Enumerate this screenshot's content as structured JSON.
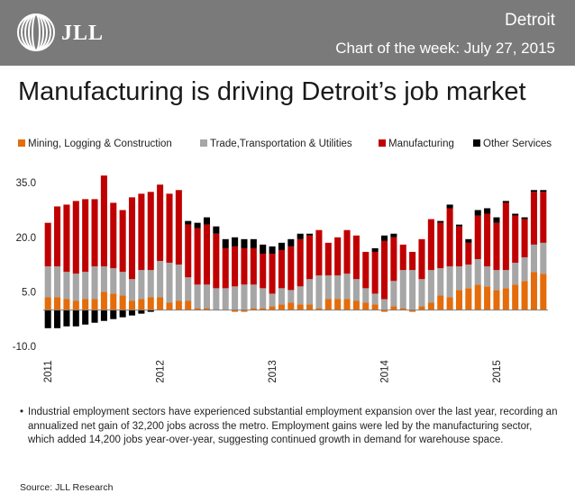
{
  "header": {
    "logo_text": "JLL",
    "city": "Detroit",
    "subtitle": "Chart of the week: July 27, 2015"
  },
  "headline": "Manufacturing is driving Detroit’s job market",
  "bullet": "Industrial employment sectors have experienced substantial employment expansion over the last year, recording an annualized net gain of 32,200 jobs across the metro. Employment gains were led by the manufacturing sector, which added 14,200 jobs year-over-year, suggesting continued growth in demand for warehouse space.",
  "source": "Source: JLL Research",
  "chart_data": {
    "type": "bar",
    "stacked": true,
    "title": "",
    "xlabel": "",
    "ylabel": "",
    "ylim": [
      -10,
      40
    ],
    "yticks": [
      "35.0",
      "20.0",
      "5.0",
      "-10.0"
    ],
    "ytick_values": [
      35,
      20,
      5,
      -10
    ],
    "x_start_label": "2011",
    "xtick_labels": [
      "2011",
      "2012",
      "2013",
      "2014",
      "2015"
    ],
    "xtick_index": [
      0,
      12,
      24,
      36,
      48
    ],
    "legend_position": "top",
    "grid": false,
    "series": [
      {
        "name": "Mining, Logging & Construction",
        "color": "#e46c0a",
        "values": [
          3.5,
          3.5,
          3,
          2.5,
          3,
          3,
          5,
          4.5,
          4,
          2.5,
          3,
          3.5,
          3.5,
          2,
          2.5,
          2.5,
          0.5,
          0.5,
          0,
          0,
          -0.5,
          -0.5,
          0.5,
          0.5,
          1,
          1.5,
          2,
          1.5,
          1.5,
          0.5,
          3,
          3,
          3,
          2.5,
          2,
          1.5,
          -0.5,
          1,
          0.5,
          -0.5,
          1,
          2,
          4,
          3.5,
          5.5,
          6,
          7,
          6.5,
          5.5,
          6,
          7,
          8,
          10.5,
          10
        ]
      },
      {
        "name": "Trade,Transportation & Utilities",
        "color": "#a6a6a6",
        "values": [
          8.5,
          8.5,
          7.5,
          7.5,
          7.5,
          9,
          7,
          7,
          6.5,
          6,
          8,
          7.5,
          10,
          11,
          10,
          6.5,
          6.5,
          6.5,
          6,
          6,
          6.5,
          7,
          6.5,
          5.5,
          3.5,
          4.5,
          3.5,
          5,
          7,
          9,
          6.5,
          6.5,
          7,
          6,
          4,
          3,
          3,
          7,
          10.5,
          11,
          7.5,
          9,
          7.5,
          8.5,
          6.5,
          6.5,
          7,
          5.5,
          5.5,
          5,
          6,
          6.5,
          7.5,
          8.5
        ]
      },
      {
        "name": "Manufacturing",
        "color": "#c00000",
        "values": [
          12,
          16.5,
          18.5,
          20,
          20,
          18.5,
          25,
          18,
          17,
          22.5,
          21,
          21.5,
          21,
          19,
          20.5,
          14.5,
          15.5,
          16.5,
          15,
          11,
          11,
          10,
          10,
          9.5,
          11,
          10.5,
          12,
          13,
          12,
          12.5,
          9,
          10.5,
          12,
          12,
          10,
          11.5,
          16,
          12,
          7,
          5,
          11,
          14,
          12.5,
          16,
          11,
          6,
          12,
          14.5,
          13,
          18.5,
          13,
          10.5,
          14.5,
          14
        ]
      },
      {
        "name": "Other Services",
        "color": "#000000",
        "values": [
          -5,
          -5,
          -4.5,
          -4.5,
          -4,
          -3.5,
          -3,
          -2.5,
          -2,
          -1.5,
          -1,
          -0.5,
          0,
          0,
          0,
          1,
          1.5,
          2,
          2,
          2.5,
          2.5,
          2.5,
          2.5,
          2.5,
          2,
          2,
          2,
          1.5,
          0.5,
          0,
          0,
          0,
          0,
          0,
          0,
          1,
          1.5,
          1,
          0,
          0,
          0,
          0,
          0.5,
          1,
          0.5,
          1,
          1.5,
          1.5,
          1.5,
          0.5,
          0.5,
          0.5,
          0.5,
          0.5
        ]
      }
    ]
  }
}
